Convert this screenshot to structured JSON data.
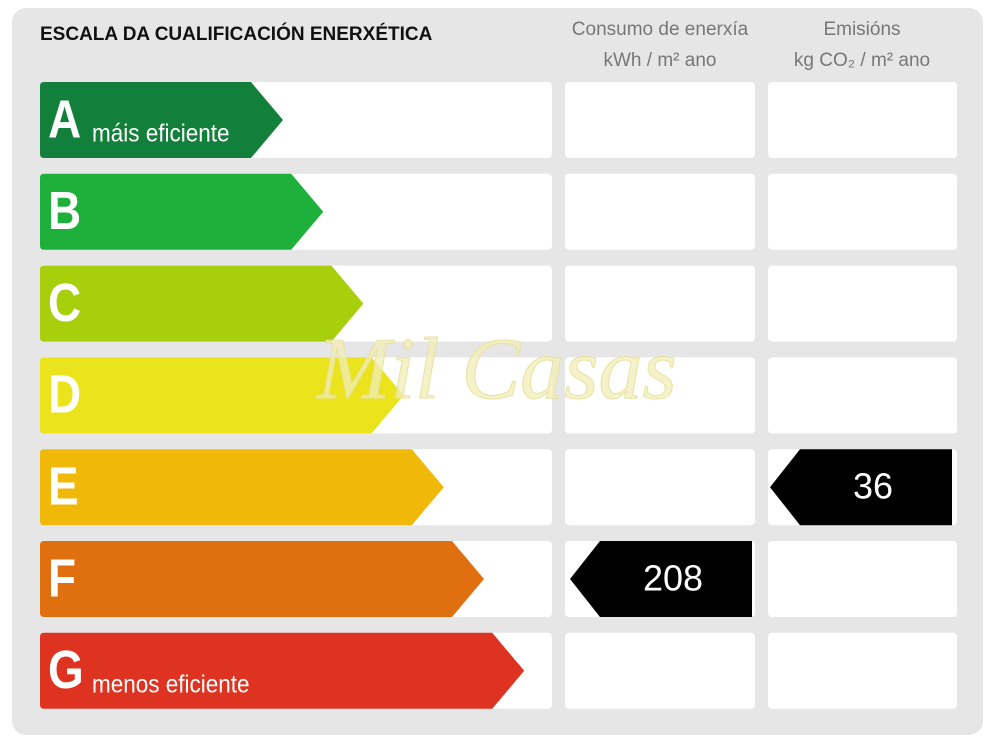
{
  "header": {
    "title": "ESCALA DA CUALIFICACIÓN ENERXÉTICA",
    "consumption": {
      "name": "Consumo de enerxía",
      "unit": "kWh / m² ano"
    },
    "emissions": {
      "name": "Emisións",
      "unit": "kg CO₂ / m² ano"
    }
  },
  "rows": [
    {
      "letter": "A",
      "label": "máis eficiente",
      "color": "#12803a"
    },
    {
      "letter": "B",
      "color": "#1eb03a"
    },
    {
      "letter": "C",
      "color": "#a8cf0c"
    },
    {
      "letter": "D",
      "color": "#ebe31c"
    },
    {
      "letter": "E",
      "color": "#f0b90a",
      "emissions": 36
    },
    {
      "letter": "F",
      "color": "#e0700f",
      "consumption": 208
    },
    {
      "letter": "G",
      "label": "menos eficiente",
      "color": "#de3320"
    }
  ],
  "watermark": "Mil Casas"
}
